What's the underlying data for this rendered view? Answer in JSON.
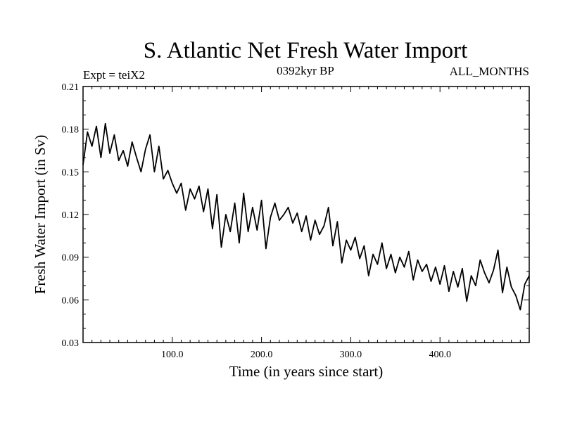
{
  "header": {
    "title": "S. Atlantic Net Fresh Water Import",
    "left_label": "Expt = teiX2",
    "center_label": "0392kyr BP",
    "right_label": "ALL_MONTHS"
  },
  "chart_data": {
    "type": "line",
    "title": "S. Atlantic Net Fresh Water Import",
    "xlabel": "Time (in years since start)",
    "ylabel": "Fresh Water Import (in Sv)",
    "xlim": [
      0,
      500
    ],
    "ylim": [
      0.03,
      0.21
    ],
    "xticks": [
      100,
      200,
      300,
      400
    ],
    "xtick_labels": [
      "100.0",
      "200.0",
      "300.0",
      "400.0"
    ],
    "yticks": [
      0.03,
      0.06,
      0.09,
      0.12,
      0.15,
      0.18,
      0.21
    ],
    "ytick_labels": [
      "0.03",
      "0.06",
      "0.09",
      "0.12",
      "0.15",
      "0.18",
      "0.21"
    ],
    "grid": false,
    "series": [
      {
        "color": "#000000",
        "x": [
          0,
          5,
          10,
          15,
          20,
          25,
          30,
          35,
          40,
          45,
          50,
          55,
          60,
          65,
          70,
          75,
          80,
          85,
          90,
          95,
          100,
          105,
          110,
          115,
          120,
          125,
          130,
          135,
          140,
          145,
          150,
          155,
          160,
          165,
          170,
          175,
          180,
          185,
          190,
          195,
          200,
          205,
          210,
          215,
          220,
          225,
          230,
          235,
          240,
          245,
          250,
          255,
          260,
          265,
          270,
          275,
          280,
          285,
          290,
          295,
          300,
          305,
          310,
          315,
          320,
          325,
          330,
          335,
          340,
          345,
          350,
          355,
          360,
          365,
          370,
          375,
          380,
          385,
          390,
          395,
          400,
          405,
          410,
          415,
          420,
          425,
          430,
          435,
          440,
          445,
          450,
          455,
          460,
          465,
          470,
          475,
          480,
          485,
          490,
          495,
          500
        ],
        "y": [
          0.155,
          0.178,
          0.168,
          0.182,
          0.16,
          0.184,
          0.163,
          0.176,
          0.158,
          0.165,
          0.154,
          0.171,
          0.16,
          0.15,
          0.166,
          0.176,
          0.15,
          0.168,
          0.145,
          0.151,
          0.142,
          0.135,
          0.142,
          0.123,
          0.138,
          0.131,
          0.14,
          0.122,
          0.138,
          0.11,
          0.134,
          0.097,
          0.12,
          0.108,
          0.128,
          0.1,
          0.135,
          0.108,
          0.125,
          0.109,
          0.13,
          0.096,
          0.118,
          0.128,
          0.116,
          0.12,
          0.125,
          0.114,
          0.121,
          0.108,
          0.119,
          0.102,
          0.116,
          0.106,
          0.112,
          0.125,
          0.098,
          0.115,
          0.086,
          0.102,
          0.095,
          0.104,
          0.089,
          0.098,
          0.077,
          0.092,
          0.085,
          0.1,
          0.082,
          0.092,
          0.079,
          0.09,
          0.083,
          0.094,
          0.074,
          0.088,
          0.08,
          0.085,
          0.073,
          0.083,
          0.071,
          0.084,
          0.066,
          0.08,
          0.069,
          0.082,
          0.059,
          0.077,
          0.07,
          0.088,
          0.079,
          0.072,
          0.081,
          0.095,
          0.065,
          0.083,
          0.069,
          0.063,
          0.053,
          0.071,
          0.077
        ]
      }
    ]
  }
}
